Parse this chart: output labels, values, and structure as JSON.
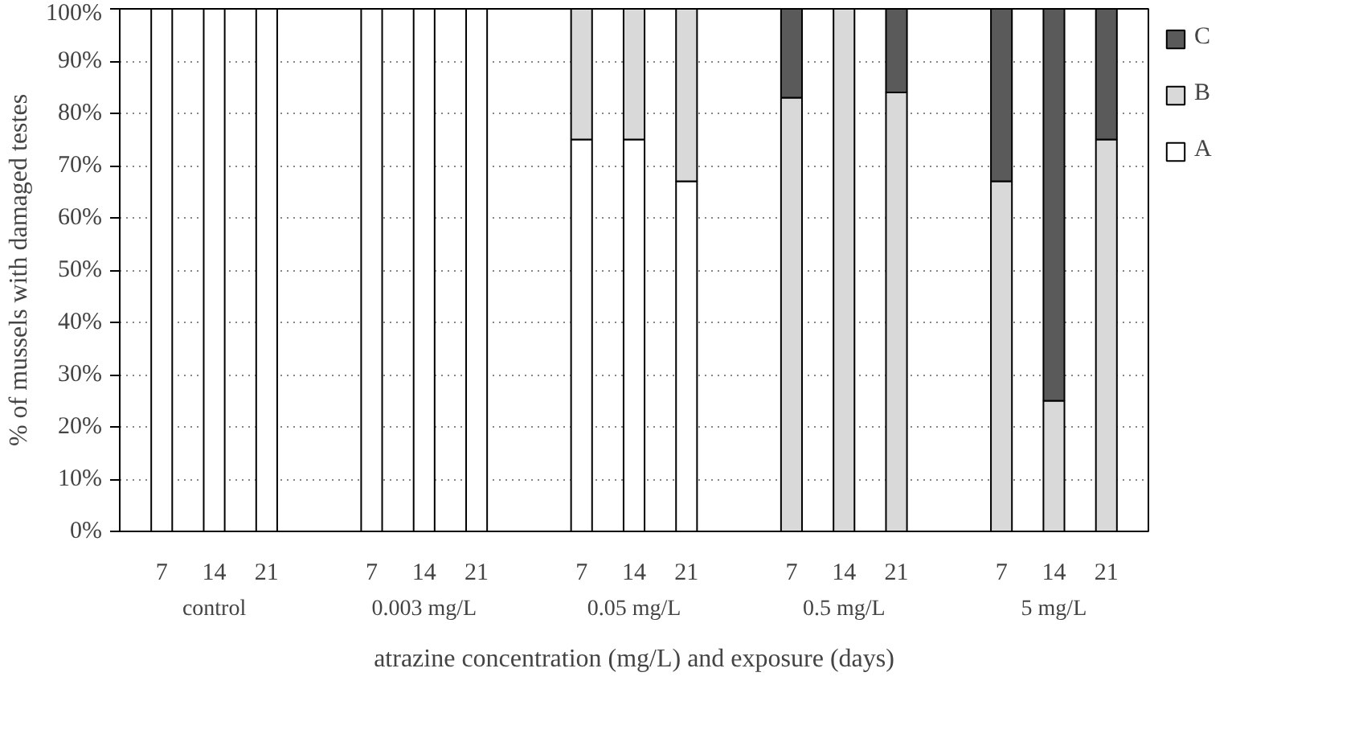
{
  "chart_data": {
    "type": "bar",
    "stacked": true,
    "xlabel": "atrazine concentration (mg/L) and exposure (days)",
    "ylabel": "% of mussels with damaged testes",
    "categories": [
      "7",
      "14",
      "21",
      null,
      "7",
      "14",
      "21",
      null,
      "7",
      "14",
      "21",
      null,
      "7",
      "14",
      "21",
      null,
      "7",
      "14",
      "21"
    ],
    "series": [
      {
        "name": "A",
        "color": "#ffffff",
        "values": [
          100,
          100,
          100,
          null,
          100,
          100,
          100,
          null,
          75,
          75,
          67,
          null,
          null,
          null,
          null,
          null,
          null,
          null,
          null
        ]
      },
      {
        "name": "B",
        "color": "#d9d9d9",
        "values": [
          null,
          null,
          null,
          null,
          null,
          null,
          null,
          null,
          25,
          25,
          33,
          null,
          83,
          100,
          84,
          null,
          67,
          25,
          75
        ]
      },
      {
        "name": "C",
        "color": "#5a5a5a",
        "values": [
          null,
          null,
          null,
          null,
          null,
          null,
          null,
          null,
          null,
          null,
          null,
          null,
          17,
          null,
          16,
          null,
          33,
          75,
          25
        ]
      }
    ],
    "annotations": [
      "control",
      "0.003 mg/L",
      "0.05 mg/L",
      "0.5 mg/L",
      "5 mg/L"
    ],
    "ylim": [
      0,
      100
    ],
    "yticks": [
      {
        "value": 0,
        "label": "0%"
      },
      {
        "value": 10,
        "label": "10%"
      },
      {
        "value": 20,
        "label": "20%"
      },
      {
        "value": 30,
        "label": "30%"
      },
      {
        "value": 40,
        "label": "40%"
      },
      {
        "value": 50,
        "label": "50%"
      },
      {
        "value": 60,
        "label": "60%"
      },
      {
        "value": 70,
        "label": "70%"
      },
      {
        "value": 80,
        "label": "80%"
      },
      {
        "value": 90,
        "label": "90%"
      },
      {
        "value": 100,
        "label": "100%"
      }
    ],
    "grid": "y",
    "legend": "right"
  }
}
